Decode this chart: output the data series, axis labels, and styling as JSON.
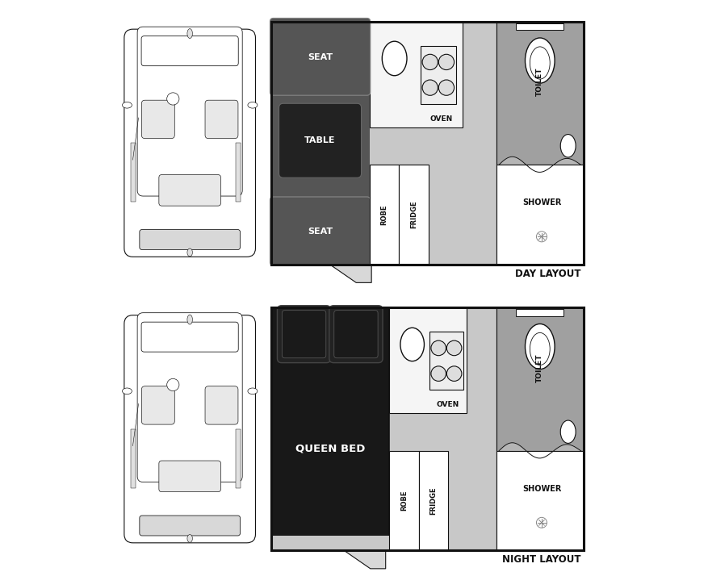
{
  "bg_color": "#ffffff",
  "wall_color": "#111111",
  "seat_dark": "#555555",
  "table_dark": "#222222",
  "bed_dark": "#181818",
  "floor_light": "#c8c8c8",
  "bath_mid": "#b5b5b5",
  "bath_dark": "#a0a0a0",
  "kitchen_white": "#f5f5f5",
  "white": "#ffffff",
  "label_color": "#111111",
  "day_label": "DAY LAYOUT",
  "night_label": "NIGHT LAYOUT",
  "seat_label": "SEAT",
  "table_label": "TABLE",
  "bed_label": "QUEEN BED",
  "oven_label": "OVEN",
  "toilet_label": "TOILET",
  "robe_label": "ROBE",
  "fridge_label": "FRIDGE",
  "shower_label": "SHOWER",
  "fig_w": 8.78,
  "fig_h": 7.09
}
